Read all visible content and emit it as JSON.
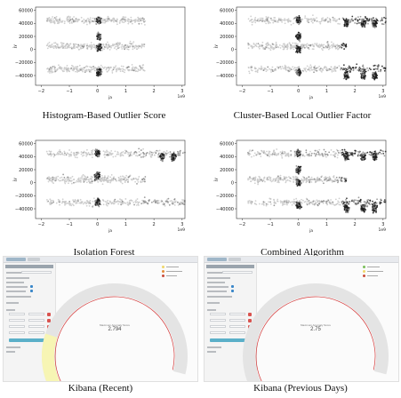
{
  "chart_data": [
    {
      "type": "scatter",
      "title": "Histogram-Based Outlier Score",
      "xlabel": "ja",
      "ylabel": "jy",
      "x_exponent_label": "1e9",
      "xlim": [
        -2.2,
        3.1
      ],
      "ylim": [
        -55000,
        65000
      ],
      "x_ticks": [
        -2,
        -1,
        0,
        1,
        2,
        3
      ],
      "y_ticks": [
        -40000,
        -20000,
        0,
        20000,
        40000,
        60000
      ],
      "y_tick_labels": [
        "−40000",
        "−20000",
        "0",
        "20000",
        "40000",
        "60000"
      ],
      "x_tick_labels": [
        "−2",
        "−1",
        "0",
        "1",
        "2",
        "3"
      ],
      "grid": false,
      "variant": "hbos",
      "bands": [
        {
          "y": 45000,
          "x_min": -2.0,
          "x_max": 1.5
        },
        {
          "y": 5000,
          "x_min": -2.0,
          "x_max": 1.5
        },
        {
          "y": -30000,
          "x_min": -2.0,
          "x_max": 1.5
        }
      ],
      "outlier_clusters": [
        {
          "x": 0.05,
          "y": 45000
        },
        {
          "x": 0.05,
          "y": 20000
        },
        {
          "x": 0.05,
          "y": 3000
        },
        {
          "x": 0.05,
          "y": -35000
        }
      ]
    },
    {
      "type": "scatter",
      "title": "Cluster-Based Local Outlier Factor",
      "xlabel": "ja",
      "ylabel": "jy",
      "x_exponent_label": "1e9",
      "xlim": [
        -2.2,
        3.1
      ],
      "ylim": [
        -55000,
        65000
      ],
      "x_ticks": [
        -2,
        -1,
        0,
        1,
        2,
        3
      ],
      "y_ticks": [
        -40000,
        -20000,
        0,
        20000,
        40000,
        60000
      ],
      "y_tick_labels": [
        "−40000",
        "−20000",
        "0",
        "20000",
        "40000",
        "60000"
      ],
      "x_tick_labels": [
        "−2",
        "−1",
        "0",
        "1",
        "2",
        "3"
      ],
      "grid": false,
      "variant": "cblof",
      "bands": [
        {
          "y": 45000,
          "x_min": -2.0,
          "x_max": 2.9
        },
        {
          "y": 5000,
          "x_min": -2.0,
          "x_max": 1.5
        },
        {
          "y": -30000,
          "x_min": -2.0,
          "x_max": 2.9
        }
      ],
      "outlier_clusters": [
        {
          "x": 0.0,
          "y": 45000
        },
        {
          "x": 0.0,
          "y": 20000
        },
        {
          "x": 0.0,
          "y": 0
        },
        {
          "x": 0.0,
          "y": -35000
        },
        {
          "x": 1.7,
          "y": 40000
        },
        {
          "x": 2.3,
          "y": 40000
        },
        {
          "x": 2.7,
          "y": 40000
        },
        {
          "x": 1.7,
          "y": -40000
        },
        {
          "x": 2.3,
          "y": -40000
        },
        {
          "x": 2.7,
          "y": -40000
        }
      ]
    },
    {
      "type": "scatter",
      "title": "Isolation Forest",
      "xlabel": "ja",
      "ylabel": "jy",
      "x_exponent_label": "1e9",
      "xlim": [
        -2.2,
        3.1
      ],
      "ylim": [
        -55000,
        65000
      ],
      "x_ticks": [
        -2,
        -1,
        0,
        1,
        2,
        3
      ],
      "y_ticks": [
        -40000,
        -20000,
        0,
        20000,
        40000,
        60000
      ],
      "y_tick_labels": [
        "−40000",
        "−20000",
        "0",
        "20000",
        "40000",
        "60000"
      ],
      "x_tick_labels": [
        "−2",
        "−1",
        "0",
        "1",
        "2",
        "3"
      ],
      "grid": false,
      "variant": "iforest",
      "bands": [
        {
          "y": 45000,
          "x_min": -2.0,
          "x_max": 2.9
        },
        {
          "y": 5000,
          "x_min": -2.0,
          "x_max": 1.5
        },
        {
          "y": -30000,
          "x_min": -2.0,
          "x_max": 2.9
        }
      ],
      "outlier_clusters": [
        {
          "x": 0.0,
          "y": 45000
        },
        {
          "x": 0.0,
          "y": 10000
        },
        {
          "x": 0.0,
          "y": -30000
        },
        {
          "x": 2.3,
          "y": 40000
        },
        {
          "x": 2.7,
          "y": 40000
        }
      ]
    },
    {
      "type": "scatter",
      "title": "Combined Algorithm",
      "xlabel": "ja",
      "ylabel": "jy",
      "x_exponent_label": "1e9",
      "xlim": [
        -2.2,
        3.1
      ],
      "ylim": [
        -55000,
        65000
      ],
      "x_ticks": [
        -2,
        -1,
        0,
        1,
        2,
        3
      ],
      "y_ticks": [
        -40000,
        -20000,
        0,
        20000,
        40000,
        60000
      ],
      "y_tick_labels": [
        "−40000",
        "−20000",
        "0",
        "20000",
        "40000",
        "60000"
      ],
      "x_tick_labels": [
        "−2",
        "−1",
        "0",
        "1",
        "2",
        "3"
      ],
      "grid": false,
      "variant": "combined",
      "bands": [
        {
          "y": 45000,
          "x_min": -2.0,
          "x_max": 2.9
        },
        {
          "y": 5000,
          "x_min": -2.0,
          "x_max": 1.5
        },
        {
          "y": -30000,
          "x_min": -2.0,
          "x_max": 2.9
        }
      ],
      "outlier_clusters": [
        {
          "x": 0.0,
          "y": 45000
        },
        {
          "x": 0.0,
          "y": 20000
        },
        {
          "x": 0.0,
          "y": 0
        },
        {
          "x": 0.0,
          "y": -35000
        },
        {
          "x": 1.7,
          "y": 40000
        },
        {
          "x": 2.3,
          "y": 40000
        },
        {
          "x": 2.7,
          "y": 40000
        },
        {
          "x": 1.7,
          "y": -40000
        },
        {
          "x": 2.3,
          "y": -40000
        },
        {
          "x": 2.7,
          "y": -40000
        }
      ]
    }
  ],
  "gauges": [
    {
      "title": "Kibana (Recent)",
      "value_label": "Maximum Anomaly Score",
      "value": "2.794",
      "fill_fraction": 0.28,
      "track_color": "#e4e4e4",
      "fill_color": "#f7f5b4",
      "needle_color": "#d43a3a"
    },
    {
      "title": "Kibana (Previous Days)",
      "value_label": "Maximum Anomaly Score",
      "value": "2.75",
      "fill_fraction": 0.0,
      "track_color": "#e4e4e4",
      "fill_color": "#f7f5b4",
      "needle_color": "#d43a3a"
    }
  ],
  "colors": {
    "inlier": "#c8c8c8",
    "mid": "#8a8a8a",
    "outlier": "#1c1c1c",
    "kibana_accent": "#5bb0c9",
    "kibana_delete": "#d9534f"
  }
}
